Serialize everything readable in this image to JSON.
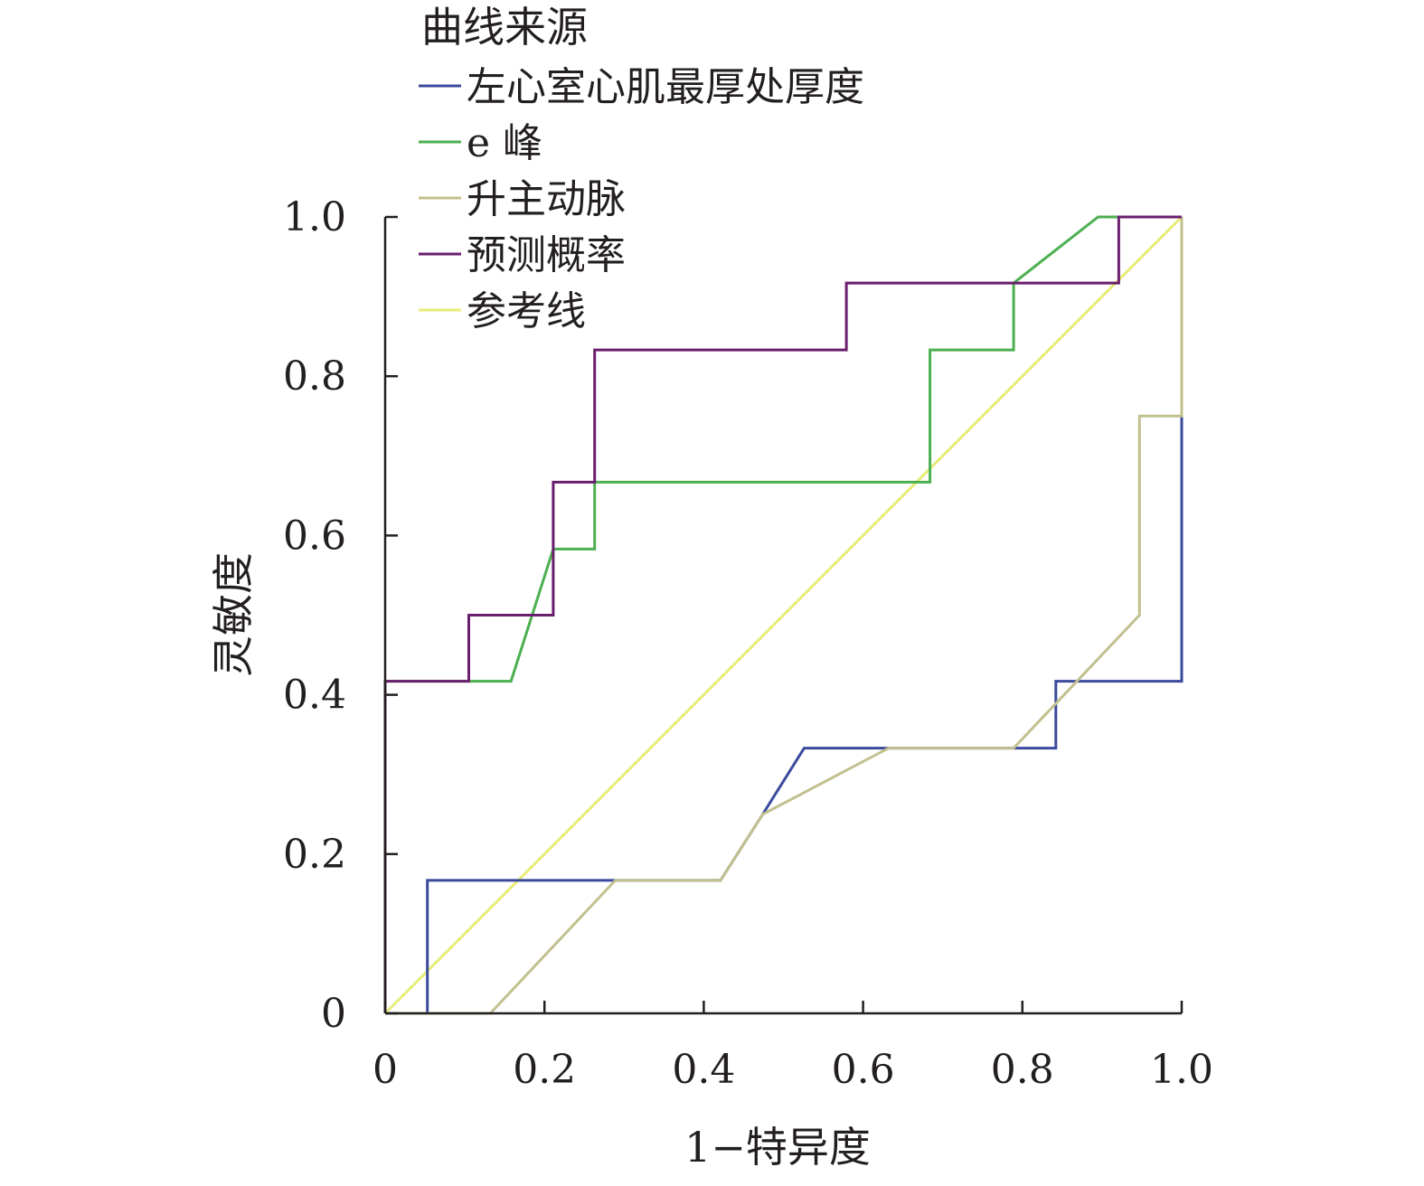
{
  "chart_data": {
    "type": "line",
    "title": "",
    "xlabel": "1−特异度",
    "ylabel": "灵敏度",
    "xlim": [
      0,
      1
    ],
    "ylim": [
      0,
      1
    ],
    "x_ticks": [
      "0",
      "0.2",
      "0.4",
      "0.6",
      "0.8",
      "1.0"
    ],
    "y_ticks": [
      "0",
      "0.2",
      "0.4",
      "0.6",
      "0.8",
      "1.0"
    ],
    "grid": false,
    "legend": {
      "title": "曲线来源",
      "placement": "top-left"
    },
    "series": [
      {
        "name": "左心室心肌最厚处厚度",
        "color": "#3b4a9c",
        "points": [
          [
            0,
            0
          ],
          [
            0.053,
            0
          ],
          [
            0.053,
            0.167
          ],
          [
            0.421,
            0.167
          ],
          [
            0.474,
            0.25
          ],
          [
            0.526,
            0.333
          ],
          [
            0.842,
            0.333
          ],
          [
            0.842,
            0.417
          ],
          [
            1.0,
            0.417
          ],
          [
            1.0,
            0.75
          ],
          [
            1.0,
            1.0
          ]
        ]
      },
      {
        "name": "e 峰",
        "color": "#4caf50",
        "points": [
          [
            0,
            0.417
          ],
          [
            0.158,
            0.417
          ],
          [
            0.211,
            0.583
          ],
          [
            0.263,
            0.583
          ],
          [
            0.263,
            0.667
          ],
          [
            0.684,
            0.667
          ],
          [
            0.684,
            0.833
          ],
          [
            0.789,
            0.833
          ],
          [
            0.789,
            0.917
          ],
          [
            0.895,
            1.0
          ],
          [
            1.0,
            1.0
          ]
        ]
      },
      {
        "name": "升主动脉",
        "color": "#c2c08e",
        "points": [
          [
            0,
            0
          ],
          [
            0.132,
            0
          ],
          [
            0.289,
            0.167
          ],
          [
            0.421,
            0.167
          ],
          [
            0.474,
            0.25
          ],
          [
            0.632,
            0.333
          ],
          [
            0.789,
            0.333
          ],
          [
            0.947,
            0.5
          ],
          [
            0.947,
            0.75
          ],
          [
            1.0,
            0.75
          ],
          [
            1.0,
            1.0
          ]
        ]
      },
      {
        "name": "预测概率",
        "color": "#6a1f6e",
        "points": [
          [
            0,
            0
          ],
          [
            0,
            0.417
          ],
          [
            0.105,
            0.417
          ],
          [
            0.105,
            0.5
          ],
          [
            0.211,
            0.5
          ],
          [
            0.211,
            0.667
          ],
          [
            0.263,
            0.667
          ],
          [
            0.263,
            0.833
          ],
          [
            0.579,
            0.833
          ],
          [
            0.579,
            0.917
          ],
          [
            0.921,
            0.917
          ],
          [
            0.921,
            1.0
          ],
          [
            1.0,
            1.0
          ]
        ]
      },
      {
        "name": "参考线",
        "color": "#e8ec77",
        "points": [
          [
            0,
            0
          ],
          [
            1,
            1
          ]
        ]
      }
    ]
  }
}
